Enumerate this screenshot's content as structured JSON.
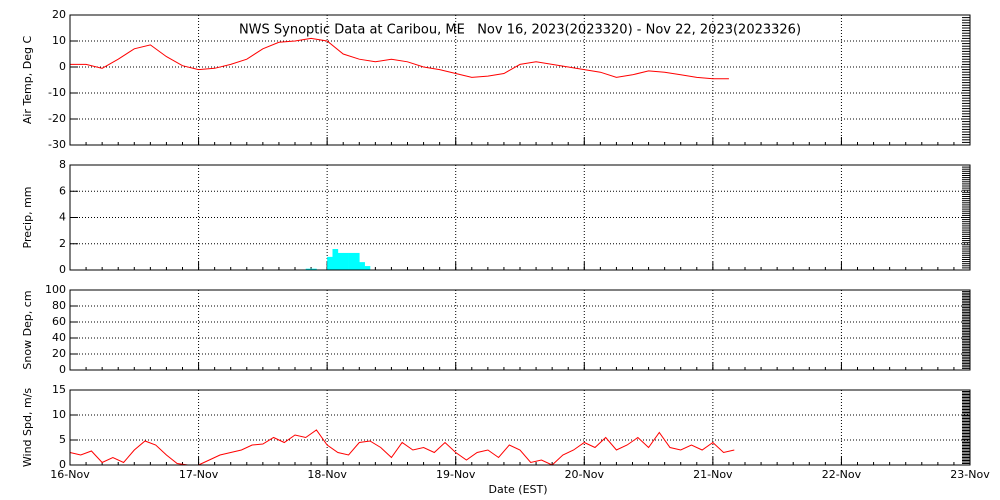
{
  "chart_data": [
    {
      "type": "line",
      "title": "NWS Synoptic Data at Caribou, ME   Nov 16, 2023(2023320) - Nov 22, 2023(2023326)",
      "ylabel": "Air Temp, Deg C",
      "ylim": [
        -30,
        20
      ],
      "yticks": [
        -30,
        -20,
        -10,
        0,
        10,
        20
      ],
      "grid": true,
      "series": [
        {
          "color": "#ff0000",
          "x": [
            0,
            3,
            6,
            9,
            12,
            15,
            18,
            21,
            24,
            27,
            30,
            33,
            36,
            39,
            42,
            45,
            48,
            51,
            54,
            57,
            60,
            63,
            66,
            69,
            72,
            75,
            78,
            81,
            84,
            87,
            90,
            93,
            96,
            99,
            102,
            105,
            108,
            111,
            114,
            117,
            120,
            123
          ],
          "values": [
            1,
            1,
            -0.5,
            3,
            7,
            8.5,
            4,
            0.5,
            -1,
            -0.5,
            1,
            3,
            7,
            9.5,
            10,
            11,
            10,
            5,
            3,
            2,
            3,
            2,
            0,
            -1,
            -2.5,
            -4,
            -3.5,
            -2.5,
            1,
            2,
            1,
            0,
            -1,
            -2,
            -4,
            -3,
            -1.5,
            -2,
            -3,
            -4,
            -4.5,
            -4.5
          ]
        }
      ]
    },
    {
      "type": "bar",
      "ylabel": "Precip, mm",
      "ylim": [
        0,
        8
      ],
      "yticks": [
        0,
        2,
        4,
        6,
        8
      ],
      "grid": true,
      "series": [
        {
          "color": "#00ffff",
          "x": [
            44,
            45,
            48,
            49,
            50,
            51,
            52,
            53,
            54,
            55
          ],
          "values": [
            0.1,
            0.1,
            1.0,
            1.6,
            1.3,
            1.3,
            1.3,
            1.3,
            0.6,
            0.3
          ]
        }
      ]
    },
    {
      "type": "line",
      "ylabel": "Snow Dep, cm",
      "ylim": [
        0,
        100
      ],
      "yticks": [
        0,
        20,
        40,
        60,
        80,
        100
      ],
      "grid": true
    },
    {
      "type": "line",
      "ylabel": "Wind Spd, m/s",
      "ylim": [
        0,
        15
      ],
      "yticks": [
        0,
        5,
        10,
        15
      ],
      "grid": true,
      "xlabel": "Date (EST)",
      "xlim": [
        0,
        168
      ],
      "xticks": [
        {
          "value": 0,
          "label": "16-Nov"
        },
        {
          "value": 24,
          "label": "17-Nov"
        },
        {
          "value": 48,
          "label": "18-Nov"
        },
        {
          "value": 72,
          "label": "19-Nov"
        },
        {
          "value": 96,
          "label": "20-Nov"
        },
        {
          "value": 120,
          "label": "21-Nov"
        },
        {
          "value": 144,
          "label": "22-Nov"
        },
        {
          "value": 168,
          "label": "23-Nov"
        }
      ],
      "series": [
        {
          "color": "#ff0000",
          "x": [
            0,
            2,
            4,
            6,
            8,
            10,
            12,
            14,
            16,
            18,
            20,
            22,
            24,
            26,
            28,
            30,
            32,
            34,
            36,
            38,
            40,
            42,
            44,
            46,
            48,
            50,
            52,
            54,
            56,
            58,
            60,
            62,
            64,
            66,
            68,
            70,
            72,
            74,
            76,
            78,
            80,
            82,
            84,
            86,
            88,
            90,
            92,
            94,
            96,
            98,
            100,
            102,
            104,
            106,
            108,
            110,
            112,
            114,
            116,
            118,
            120,
            122,
            124
          ],
          "values": [
            2.5,
            2,
            2.8,
            0.5,
            1.5,
            0.5,
            3,
            4.8,
            4,
            2,
            0.3,
            0,
            0,
            1,
            2,
            2.5,
            3,
            4,
            4.2,
            5.5,
            4.5,
            6,
            5.5,
            7,
            4,
            2.5,
            2,
            4.5,
            4.8,
            3.5,
            1.5,
            4.5,
            3,
            3.5,
            2.5,
            4.5,
            2.5,
            1,
            2.5,
            3,
            1.5,
            4,
            3,
            0.5,
            1,
            0,
            2,
            3,
            4.5,
            3.5,
            5.5,
            3,
            4,
            5.5,
            3.5,
            6.5,
            3.5,
            3,
            4,
            3,
            4.5,
            2.5,
            3
          ]
        }
      ]
    }
  ]
}
